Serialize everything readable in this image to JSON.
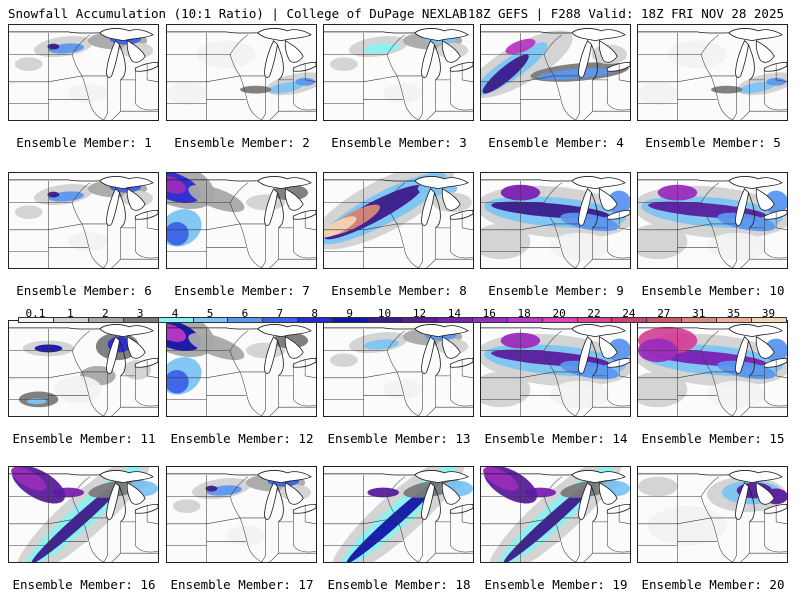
{
  "header": {
    "title": "Snowfall Accumulation (10:1 Ratio) | College of DuPage NEXLAB",
    "valid": "18Z GEFS | F288 Valid: 18Z FRI NOV 28 2025"
  },
  "colorbar": {
    "labels": [
      "0.1",
      "1",
      "2",
      "3",
      "4",
      "5",
      "6",
      "7",
      "8",
      "9",
      "10",
      "12",
      "14",
      "16",
      "18",
      "20",
      "22",
      "24",
      "27",
      "31",
      "35",
      "39"
    ],
    "colors": [
      "#f2f2f2",
      "#d2d2d2",
      "#a8a8a8",
      "#7a7a7a",
      "#8cf0f0",
      "#7cc4f4",
      "#5a96ee",
      "#3c62e6",
      "#2a2ad2",
      "#1414a8",
      "#3c1a8c",
      "#5a1c9c",
      "#7a20b4",
      "#9a2cbc",
      "#ba38c4",
      "#d848b4",
      "#d44898",
      "#c84478",
      "#c85a6a",
      "#d88a78",
      "#e8b098",
      "#f4d2b4"
    ]
  },
  "panels": [
    {
      "label": "Ensemble Member: 1",
      "pattern": "north-spots",
      "intensity": 2
    },
    {
      "label": "Ensemble Member: 2",
      "pattern": "east-light",
      "intensity": 1
    },
    {
      "label": "Ensemble Member: 3",
      "pattern": "north-spots",
      "intensity": 0
    },
    {
      "label": "Ensemble Member: 4",
      "pattern": "northwest-band",
      "intensity": 3
    },
    {
      "label": "Ensemble Member: 5",
      "pattern": "east-light",
      "intensity": 1
    },
    {
      "label": "Ensemble Member: 6",
      "pattern": "north-spots",
      "intensity": 2
    },
    {
      "label": "Ensemble Member: 7",
      "pattern": "northwest-corner",
      "intensity": 2
    },
    {
      "label": "Ensemble Member: 8",
      "pattern": "diagonal-heavy",
      "intensity": 4
    },
    {
      "label": "Ensemble Member: 9",
      "pattern": "wide-band",
      "intensity": 2
    },
    {
      "label": "Ensemble Member: 10",
      "pattern": "wide-band",
      "intensity": 3
    },
    {
      "label": "Ensemble Member: 11",
      "pattern": "scattered",
      "intensity": 2
    },
    {
      "label": "Ensemble Member: 12",
      "pattern": "northwest-corner",
      "intensity": 3
    },
    {
      "label": "Ensemble Member: 13",
      "pattern": "north-spots",
      "intensity": 1
    },
    {
      "label": "Ensemble Member: 14",
      "pattern": "wide-band",
      "intensity": 3
    },
    {
      "label": "Ensemble Member: 15",
      "pattern": "wide-band",
      "intensity": 4
    },
    {
      "label": "Ensemble Member: 16",
      "pattern": "sw-ne-band",
      "intensity": 3
    },
    {
      "label": "Ensemble Member: 17",
      "pattern": "north-spots",
      "intensity": 2
    },
    {
      "label": "Ensemble Member: 18",
      "pattern": "sw-ne-band",
      "intensity": 2
    },
    {
      "label": "Ensemble Member: 19",
      "pattern": "sw-ne-band",
      "intensity": 3
    },
    {
      "label": "Ensemble Member: 20",
      "pattern": "east-cluster",
      "intensity": 3
    }
  ]
}
